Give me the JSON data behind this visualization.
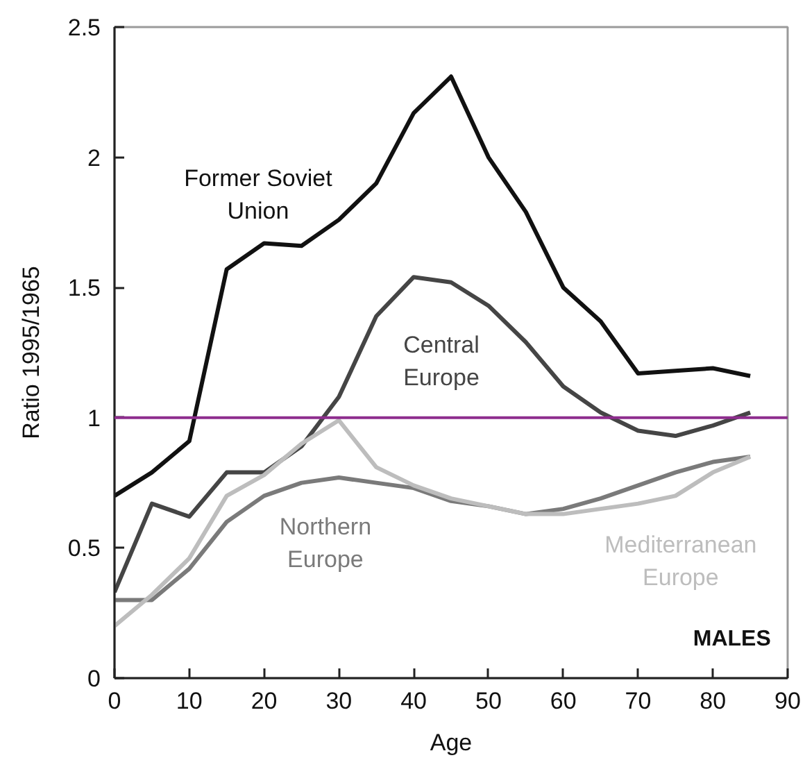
{
  "chart_data": {
    "type": "line",
    "xlabel": "Age",
    "ylabel": "Ratio 1995/1965",
    "x": [
      0,
      5,
      10,
      15,
      20,
      25,
      30,
      35,
      40,
      45,
      50,
      55,
      60,
      65,
      70,
      75,
      80,
      85
    ],
    "xlim": [
      0,
      90
    ],
    "xticks": [
      0,
      10,
      20,
      30,
      40,
      50,
      60,
      70,
      80,
      90
    ],
    "ylim": [
      0,
      2.5
    ],
    "yticks": [
      0,
      0.5,
      1,
      1.5,
      2,
      2.5
    ],
    "series": [
      {
        "name": "Former Soviet Union",
        "color": "#111111",
        "values": [
          0.7,
          0.79,
          0.91,
          1.57,
          1.67,
          1.66,
          1.76,
          1.9,
          2.17,
          2.31,
          2.0,
          1.79,
          1.5,
          1.37,
          1.17,
          1.18,
          1.19,
          1.16
        ]
      },
      {
        "name": "Central Europe",
        "color": "#454545",
        "values": [
          0.33,
          0.67,
          0.62,
          0.79,
          0.79,
          0.89,
          1.08,
          1.39,
          1.54,
          1.52,
          1.43,
          1.29,
          1.12,
          1.02,
          0.95,
          0.93,
          0.97,
          1.02
        ]
      },
      {
        "name": "Northern Europe",
        "color": "#7a7a7a",
        "values": [
          0.3,
          0.3,
          0.42,
          0.6,
          0.7,
          0.75,
          0.77,
          0.75,
          0.73,
          0.68,
          0.66,
          0.63,
          0.65,
          0.69,
          0.74,
          0.79,
          0.83,
          0.85
        ]
      },
      {
        "name": "Mediterranean Europe",
        "color": "#bdbdbd",
        "values": [
          0.2,
          0.32,
          0.46,
          0.7,
          0.78,
          0.9,
          0.99,
          0.81,
          0.74,
          0.69,
          0.66,
          0.63,
          0.63,
          0.65,
          0.67,
          0.7,
          0.79,
          0.85
        ]
      }
    ],
    "ref_lines": [
      {
        "axis": "y",
        "value": 1,
        "color": "#8e2d8e"
      }
    ],
    "annotations": [
      "MALES"
    ]
  }
}
